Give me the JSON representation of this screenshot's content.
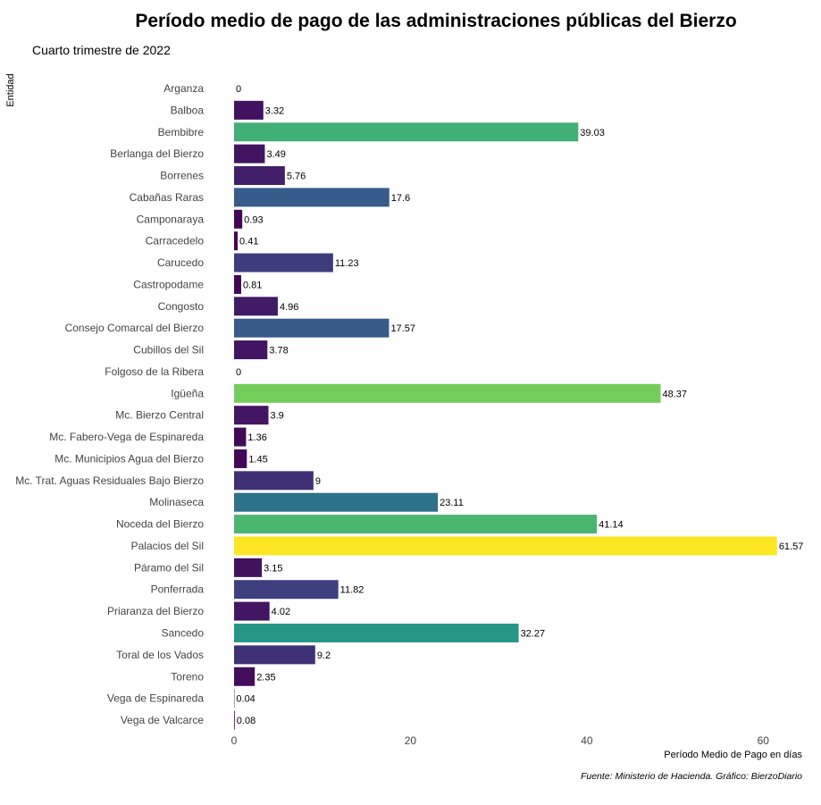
{
  "chart_data": {
    "type": "bar",
    "orientation": "horizontal",
    "title": "Período medio de pago de las administraciones públicas del Bierzo",
    "subtitle": "Cuarto trimestre de 2022",
    "xlabel": "Período Medio de Pago en días",
    "ylabel": "Entidad",
    "caption": "Fuente: Ministerio de Hacienda. Gráfico: BierzoDiario",
    "xlim": [
      0,
      62.5
    ],
    "x_ticks": [
      0,
      20,
      40,
      60
    ],
    "grid": false,
    "legend": "none",
    "color_scale": {
      "type": "viridis",
      "domain": [
        0,
        61.57
      ],
      "stops": [
        "#440154",
        "#3b528b",
        "#21918c",
        "#5ec962",
        "#fde725"
      ]
    },
    "categories": [
      "Arganza",
      "Balboa",
      "Bembibre",
      "Berlanga del Bierzo",
      "Borrenes",
      "Cabañas Raras",
      "Camponaraya",
      "Carracedelo",
      "Carucedo",
      "Castropodame",
      "Congosto",
      "Consejo Comarcal del Bierzo",
      "Cubillos del Sil",
      "Folgoso de la Ribera",
      "Igüeña",
      "Mc. Bierzo Central",
      "Mc. Fabero-Vega de Espinareda",
      "Mc. Municipios Agua del Bierzo",
      "Mc. Trat. Aguas Residuales Bajo Bierzo",
      "Molinaseca",
      "Noceda del Bierzo",
      "Palacios del Sil",
      "Páramo del Sil",
      "Ponferrada",
      "Priaranza del Bierzo",
      "Sancedo",
      "Toral de los Vados",
      "Toreno",
      "Vega de Espinareda",
      "Vega de Valcarce"
    ],
    "values": [
      0,
      3.32,
      39.03,
      3.49,
      5.76,
      17.6,
      0.93,
      0.41,
      11.23,
      0.81,
      4.96,
      17.57,
      3.78,
      0,
      48.37,
      3.9,
      1.36,
      1.45,
      9,
      23.11,
      41.14,
      61.57,
      3.15,
      11.82,
      4.02,
      32.27,
      9.2,
      2.35,
      0.04,
      0.08
    ],
    "value_labels": [
      "0",
      "3.32",
      "39.03",
      "3.49",
      "5.76",
      "17.6",
      "0.93",
      "0.41",
      "11.23",
      "0.81",
      "4.96",
      "17.57",
      "3.78",
      "0",
      "48.37",
      "3.9",
      "1.36",
      "1.45",
      "9",
      "23.11",
      "41.14",
      "61.57",
      "3.15",
      "11.82",
      "4.02",
      "32.27",
      "9.2",
      "2.35",
      "0.04",
      "0.08"
    ]
  }
}
